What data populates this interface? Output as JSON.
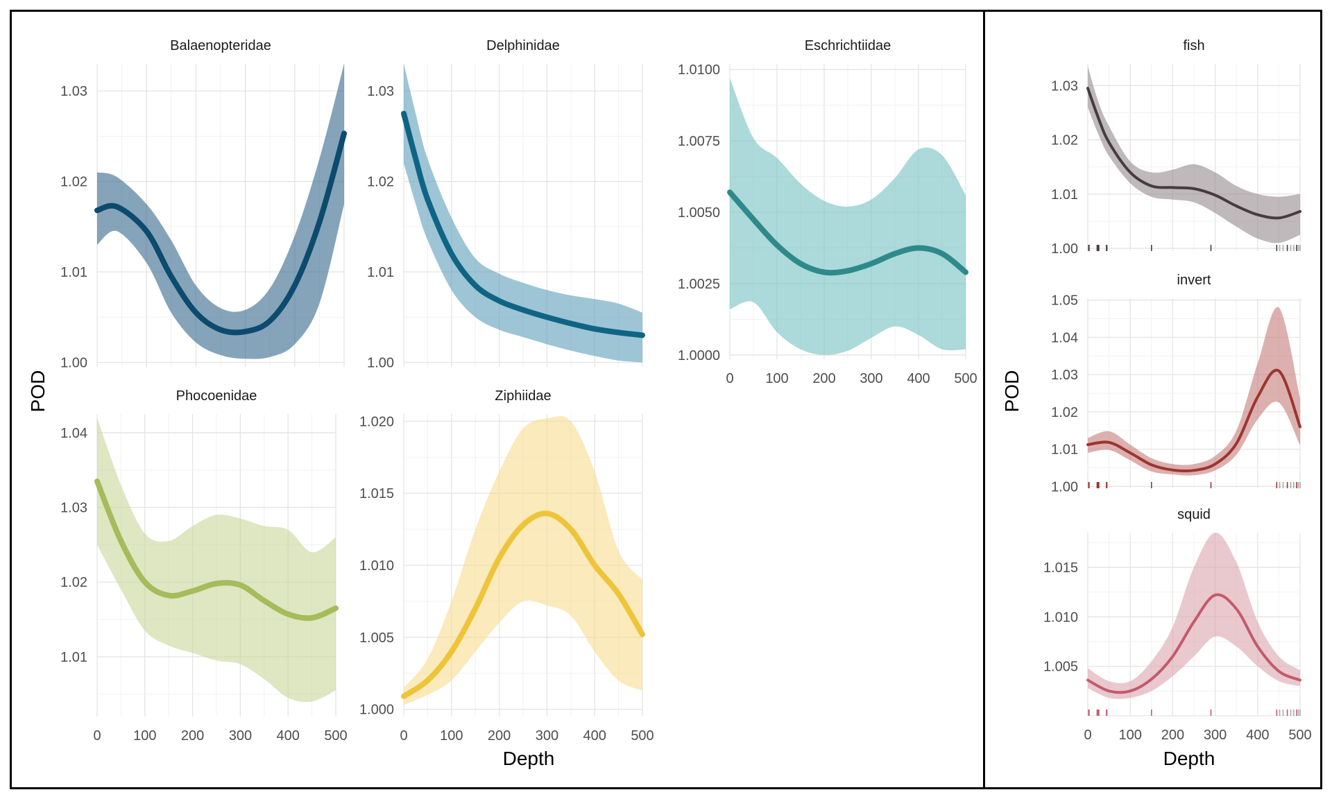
{
  "left_group": {
    "ylabel": "POD",
    "xlabel": "Depth"
  },
  "right_group": {
    "ylabel": "POD",
    "xlabel": "Depth"
  },
  "chart_data": [
    {
      "type": "line",
      "title": "Balaenopteridae",
      "group": "left",
      "xlim": [
        0,
        500
      ],
      "ylim": [
        0.9995,
        1.033
      ],
      "yticks": [
        1.0,
        1.01,
        1.02,
        1.03
      ],
      "ytick_labels": [
        "1.00",
        "1.01",
        "1.02",
        "1.03"
      ],
      "xticks": [
        0,
        100,
        200,
        300,
        400,
        500
      ],
      "xtick_labels": [],
      "x": [
        0,
        40,
        100,
        150,
        200,
        250,
        300,
        350,
        400,
        450,
        500
      ],
      "y": [
        1.0168,
        1.0172,
        1.0145,
        1.0095,
        1.0055,
        1.0036,
        1.0034,
        1.0046,
        1.0085,
        1.0155,
        1.0253
      ],
      "lower": [
        1.013,
        1.0145,
        1.011,
        1.0055,
        1.0022,
        1.0008,
        1.0004,
        1.0006,
        1.002,
        1.0065,
        1.0175
      ],
      "upper": [
        1.021,
        1.0205,
        1.0175,
        1.0135,
        1.0085,
        1.006,
        1.0058,
        1.0082,
        1.014,
        1.0225,
        1.033
      ],
      "line_color": "#0c4a6e",
      "fill_color": "#33688c"
    },
    {
      "type": "line",
      "title": "Delphinidae",
      "group": "left",
      "xlim": [
        0,
        500
      ],
      "ylim": [
        0.9995,
        1.033
      ],
      "yticks": [
        1.0,
        1.01,
        1.02,
        1.03
      ],
      "ytick_labels": [
        "1.00",
        "1.01",
        "1.02",
        "1.03"
      ],
      "xticks": [
        0,
        100,
        200,
        300,
        400,
        500
      ],
      "xtick_labels": [],
      "x": [
        0,
        25,
        50,
        100,
        150,
        200,
        250,
        300,
        350,
        400,
        450,
        500
      ],
      "y": [
        1.0275,
        1.0225,
        1.018,
        1.012,
        1.0085,
        1.0068,
        1.0058,
        1.005,
        1.0043,
        1.0037,
        1.0033,
        1.003
      ],
      "lower": [
        1.022,
        1.0175,
        1.0135,
        1.008,
        1.005,
        1.0036,
        1.0028,
        1.002,
        1.0013,
        1.0007,
        1.0002,
        1.0
      ],
      "upper": [
        1.033,
        1.0275,
        1.0225,
        1.016,
        1.0115,
        1.0098,
        1.0088,
        1.008,
        1.0074,
        1.007,
        1.0065,
        1.0055
      ],
      "line_color": "#0f6484",
      "fill_color": "#5b9ebb"
    },
    {
      "type": "line",
      "title": "Eschrichtiidae",
      "group": "left",
      "xlim": [
        0,
        500
      ],
      "ylim": [
        -0.0002,
        1.0102
      ],
      "yticks": [
        1.0,
        1.0025,
        1.005,
        1.0075,
        1.01
      ],
      "ytick_labels": [
        "1.0000",
        "1.0025",
        "1.0050",
        "1.0075",
        "1.0100"
      ],
      "xticks": [
        0,
        100,
        200,
        300,
        400,
        500
      ],
      "xtick_labels": [
        "0",
        "100",
        "200",
        "300",
        "400",
        "500"
      ],
      "x": [
        0,
        50,
        100,
        150,
        200,
        250,
        300,
        350,
        400,
        450,
        500
      ],
      "y": [
        1.0057,
        1.00475,
        1.00385,
        1.0032,
        1.0029,
        1.00295,
        1.0032,
        1.00355,
        1.00375,
        1.00355,
        1.0029
      ],
      "lower": [
        1.0016,
        1.00185,
        1.0008,
        1.0002,
        1.0,
        1.00015,
        1.0006,
        1.001,
        1.0007,
        1.0002,
        1.0002
      ],
      "upper": [
        1.0097,
        1.0076,
        1.0069,
        1.006,
        1.0054,
        1.0052,
        1.00545,
        1.0062,
        1.0072,
        1.007,
        1.0056
      ],
      "line_color": "#2e8a8a",
      "fill_color": "#75bfbf"
    },
    {
      "type": "line",
      "title": "Phocoenidae",
      "group": "left",
      "xlim": [
        0,
        500
      ],
      "ylim": [
        1.002,
        1.0425
      ],
      "yticks": [
        1.01,
        1.02,
        1.03,
        1.04
      ],
      "ytick_labels": [
        "1.01",
        "1.02",
        "1.03",
        "1.04"
      ],
      "xticks": [
        0,
        100,
        200,
        300,
        400,
        500
      ],
      "xtick_labels": [
        "0",
        "100",
        "200",
        "300",
        "400",
        "500"
      ],
      "x": [
        0,
        50,
        100,
        150,
        200,
        250,
        300,
        350,
        400,
        450,
        500
      ],
      "y": [
        1.0335,
        1.0255,
        1.02,
        1.0182,
        1.0188,
        1.0198,
        1.0196,
        1.0175,
        1.0157,
        1.0152,
        1.0165
      ],
      "lower": [
        1.025,
        1.019,
        1.0135,
        1.0115,
        1.0105,
        1.0095,
        1.009,
        1.007,
        1.0045,
        1.004,
        1.0055
      ],
      "upper": [
        1.042,
        1.033,
        1.0265,
        1.0255,
        1.0275,
        1.029,
        1.0285,
        1.0275,
        1.027,
        1.024,
        1.026
      ],
      "line_color": "#a6bb5a",
      "fill_color": "#c9d69a"
    },
    {
      "type": "line",
      "title": "Ziphiidae",
      "group": "left",
      "xlim": [
        0,
        500
      ],
      "ylim": [
        0.9995,
        1.0205
      ],
      "yticks": [
        1.0,
        1.005,
        1.01,
        1.015,
        1.02
      ],
      "ytick_labels": [
        "1.000",
        "1.005",
        "1.010",
        "1.015",
        "1.020"
      ],
      "xticks": [
        0,
        100,
        200,
        300,
        400,
        500
      ],
      "xtick_labels": [
        "0",
        "100",
        "200",
        "300",
        "400",
        "500"
      ],
      "x": [
        0,
        50,
        100,
        150,
        200,
        250,
        300,
        350,
        400,
        450,
        500
      ],
      "y": [
        1.0009,
        1.002,
        1.004,
        1.007,
        1.0105,
        1.0128,
        1.0136,
        1.0125,
        1.01,
        1.008,
        1.0052
      ],
      "lower": [
        1.0003,
        1.001,
        1.002,
        1.004,
        1.006,
        1.0075,
        1.0072,
        1.0065,
        1.004,
        1.002,
        1.0013
      ],
      "upper": [
        1.0015,
        1.0035,
        1.0075,
        1.0125,
        1.0165,
        1.0195,
        1.0202,
        1.02,
        1.0165,
        1.011,
        1.009
      ],
      "line_color": "#eec43a",
      "fill_color": "#f7dc8f"
    },
    {
      "type": "line",
      "title": "fish",
      "group": "right",
      "xlim": [
        0,
        500
      ],
      "ylim": [
        0.9995,
        1.034
      ],
      "yticks": [
        1.0,
        1.01,
        1.02,
        1.03
      ],
      "ytick_labels": [
        "1.00",
        "1.01",
        "1.02",
        "1.03"
      ],
      "xticks": [
        0,
        100,
        200,
        300,
        400,
        500
      ],
      "xtick_labels": [],
      "x": [
        0,
        25,
        50,
        100,
        150,
        200,
        250,
        300,
        350,
        400,
        450,
        500
      ],
      "y": [
        1.0295,
        1.024,
        1.0195,
        1.014,
        1.0115,
        1.0112,
        1.011,
        1.0098,
        1.0078,
        1.0062,
        1.0056,
        1.0068
      ],
      "lower": [
        1.026,
        1.021,
        1.017,
        1.012,
        1.0095,
        1.009,
        1.0085,
        1.0065,
        1.004,
        1.0018,
        1.001,
        1.0025
      ],
      "upper": [
        1.0335,
        1.027,
        1.0225,
        1.016,
        1.014,
        1.0145,
        1.0155,
        1.014,
        1.0115,
        1.01,
        1.0095,
        1.01
      ],
      "line_color": "#463c3f",
      "fill_color": "#958b8e",
      "rug_x": [
        2,
        3,
        22,
        24,
        26,
        44,
        45,
        150,
        290,
        445,
        452,
        460,
        470,
        478,
        485,
        492,
        496,
        500
      ]
    },
    {
      "type": "line",
      "title": "invert",
      "group": "right",
      "xlim": [
        0,
        500
      ],
      "ylim": [
        0.9995,
        1.0505
      ],
      "yticks": [
        1.0,
        1.01,
        1.02,
        1.03,
        1.04,
        1.05
      ],
      "ytick_labels": [
        "1.00",
        "1.01",
        "1.02",
        "1.03",
        "1.04",
        "1.05"
      ],
      "xticks": [
        0,
        100,
        200,
        300,
        400,
        500
      ],
      "xtick_labels": [],
      "x": [
        0,
        50,
        100,
        150,
        200,
        250,
        300,
        350,
        400,
        450,
        500
      ],
      "y": [
        1.0112,
        1.0118,
        1.009,
        1.0058,
        1.0044,
        1.0043,
        1.006,
        1.0115,
        1.024,
        1.031,
        1.016
      ],
      "lower": [
        1.009,
        1.0098,
        1.007,
        1.004,
        1.0032,
        1.003,
        1.0043,
        1.0085,
        1.018,
        1.0225,
        1.011
      ],
      "upper": [
        1.013,
        1.0148,
        1.0112,
        1.0076,
        1.006,
        1.006,
        1.0082,
        1.015,
        1.033,
        1.048,
        1.0235
      ],
      "line_color": "#9b3530",
      "fill_color": "#c47c78",
      "rug_x": [
        2,
        3,
        22,
        24,
        26,
        44,
        45,
        150,
        290,
        445,
        452,
        460,
        470,
        478,
        485,
        492,
        496,
        500
      ]
    },
    {
      "type": "line",
      "title": "squid",
      "group": "right",
      "xlim": [
        0,
        500
      ],
      "ylim": [
        1.0,
        1.0185
      ],
      "yticks": [
        1.005,
        1.01,
        1.015
      ],
      "ytick_labels": [
        "1.005",
        "1.010",
        "1.015"
      ],
      "xticks": [
        0,
        100,
        200,
        300,
        400,
        500
      ],
      "xtick_labels": [
        "0",
        "100",
        "200",
        "300",
        "400",
        "500"
      ],
      "x": [
        0,
        50,
        100,
        150,
        200,
        250,
        300,
        350,
        400,
        450,
        500
      ],
      "y": [
        1.0036,
        1.0025,
        1.0025,
        1.0037,
        1.006,
        1.0095,
        1.0122,
        1.0108,
        1.007,
        1.0045,
        1.0036
      ],
      "lower": [
        1.0028,
        1.0018,
        1.0018,
        1.0025,
        1.004,
        1.006,
        1.008,
        1.007,
        1.005,
        1.0035,
        1.003
      ],
      "upper": [
        1.0048,
        1.0035,
        1.0035,
        1.0055,
        1.009,
        1.015,
        1.0185,
        1.0155,
        1.0095,
        1.006,
        1.0046
      ],
      "line_color": "#c25a6b",
      "fill_color": "#dba4ae",
      "rug_x": [
        2,
        3,
        22,
        24,
        26,
        44,
        45,
        150,
        290,
        445,
        452,
        460,
        470,
        478,
        485,
        492,
        496,
        500
      ]
    }
  ]
}
